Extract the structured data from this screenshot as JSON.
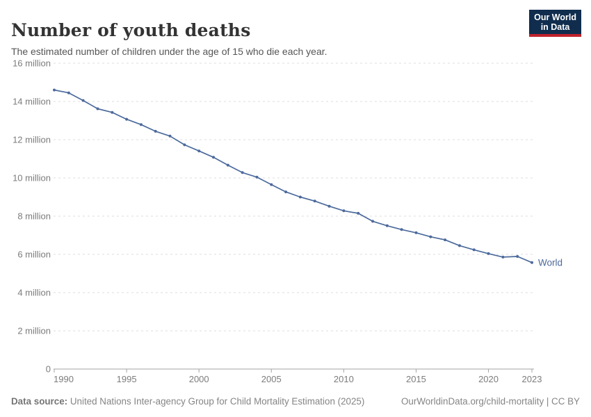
{
  "header": {
    "title": "Number of youth deaths",
    "subtitle": "The estimated number of children under the age of 15 who die each year.",
    "logo": {
      "line1": "Our World",
      "line2": "in Data",
      "bg": "#102d4e",
      "accent": "#c0222c"
    }
  },
  "chart_data": {
    "type": "line",
    "title": "Number of youth deaths",
    "xlabel": "",
    "ylabel": "",
    "unit": "million deaths per year",
    "xlim": [
      1990,
      2023
    ],
    "ylim": [
      0,
      16
    ],
    "grid": "horizontal-dashed",
    "legend_position": "end-of-line",
    "x": [
      1990,
      1991,
      1992,
      1993,
      1994,
      1995,
      1996,
      1997,
      1998,
      1999,
      2000,
      2001,
      2002,
      2003,
      2004,
      2005,
      2006,
      2007,
      2008,
      2009,
      2010,
      2011,
      2012,
      2013,
      2014,
      2015,
      2016,
      2017,
      2018,
      2019,
      2020,
      2021,
      2022,
      2023
    ],
    "series": [
      {
        "name": "World",
        "color": "#4C6A9C",
        "values": [
          14.6,
          14.45,
          14.05,
          13.62,
          13.43,
          13.07,
          12.79,
          12.44,
          12.19,
          11.73,
          11.41,
          11.08,
          10.67,
          10.28,
          10.04,
          9.65,
          9.27,
          9.0,
          8.79,
          8.52,
          8.28,
          8.15,
          7.73,
          7.5,
          7.3,
          7.13,
          6.92,
          6.76,
          6.46,
          6.24,
          6.04,
          5.86,
          5.89,
          5.57
        ]
      }
    ],
    "y_ticks": [
      {
        "value": 0,
        "label": "0"
      },
      {
        "value": 2,
        "label": "2 million"
      },
      {
        "value": 4,
        "label": "4 million"
      },
      {
        "value": 6,
        "label": "6 million"
      },
      {
        "value": 8,
        "label": "8 million"
      },
      {
        "value": 10,
        "label": "10 million"
      },
      {
        "value": 12,
        "label": "12 million"
      },
      {
        "value": 14,
        "label": "14 million"
      },
      {
        "value": 16,
        "label": "16 million"
      }
    ],
    "x_ticks": [
      1990,
      1995,
      2000,
      2005,
      2010,
      2015,
      2020,
      2023
    ],
    "colors": {
      "grid": "#dcdcdc",
      "axis": "#a3a3a3",
      "tick_text": "#7c7c7c"
    }
  },
  "footer": {
    "source_label": "Data source:",
    "source_text": " United Nations Inter-agency Group for Child Mortality Estimation (2025)",
    "link_text": "OurWorldinData.org/child-mortality | CC BY"
  }
}
